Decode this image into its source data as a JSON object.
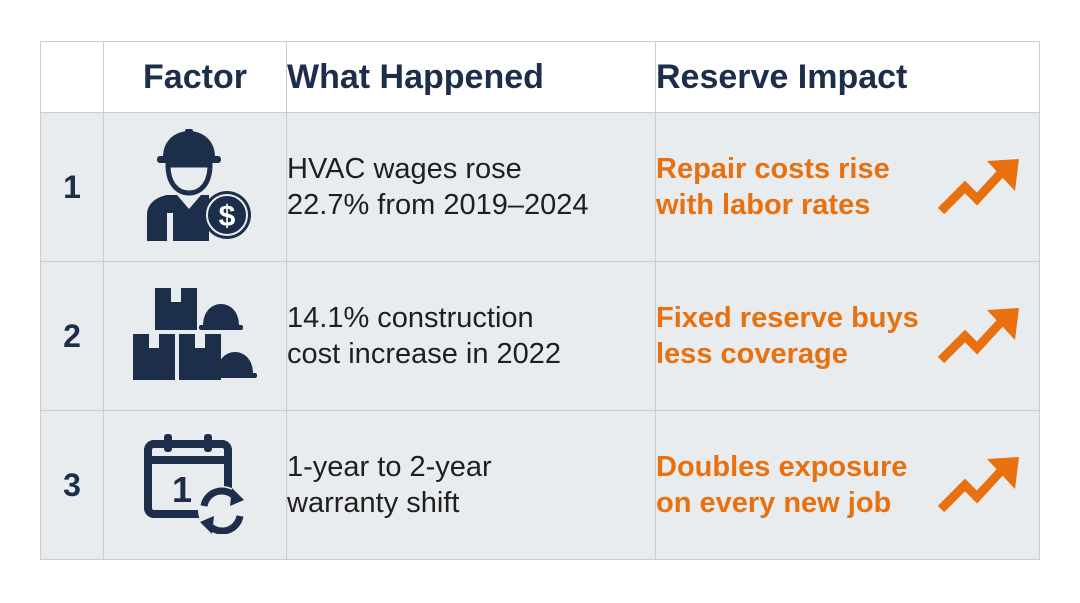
{
  "colors": {
    "navy": "#1d2e4b",
    "accent_orange": "#e8700e",
    "row_bg": "#e9ecef",
    "border": "#c9cdd2"
  },
  "header": {
    "num": "",
    "factor": "Factor",
    "what": "What Happened",
    "impact": "Reserve Impact"
  },
  "rows": [
    {
      "num": "1",
      "icon": "worker-dollar-icon",
      "what": [
        "HVAC wages rose",
        "22.7% from 2019–2024"
      ],
      "impact": [
        "Repair costs rise",
        "with labor rates"
      ],
      "trend_icon": "trend-up-arrow-icon"
    },
    {
      "num": "2",
      "icon": "materials-hardhat-icon",
      "what": [
        "14.1% construction",
        "cost increase in 2022"
      ],
      "impact": [
        "Fixed reserve buys",
        "less coverage"
      ],
      "trend_icon": "trend-up-arrow-icon"
    },
    {
      "num": "3",
      "icon": "calendar-renew-icon",
      "what": [
        "1-year to 2-year",
        "warranty shift"
      ],
      "impact": [
        "Doubles exposure",
        "on every new job"
      ],
      "trend_icon": "trend-up-arrow-icon",
      "calendar_digit": "1"
    }
  ]
}
